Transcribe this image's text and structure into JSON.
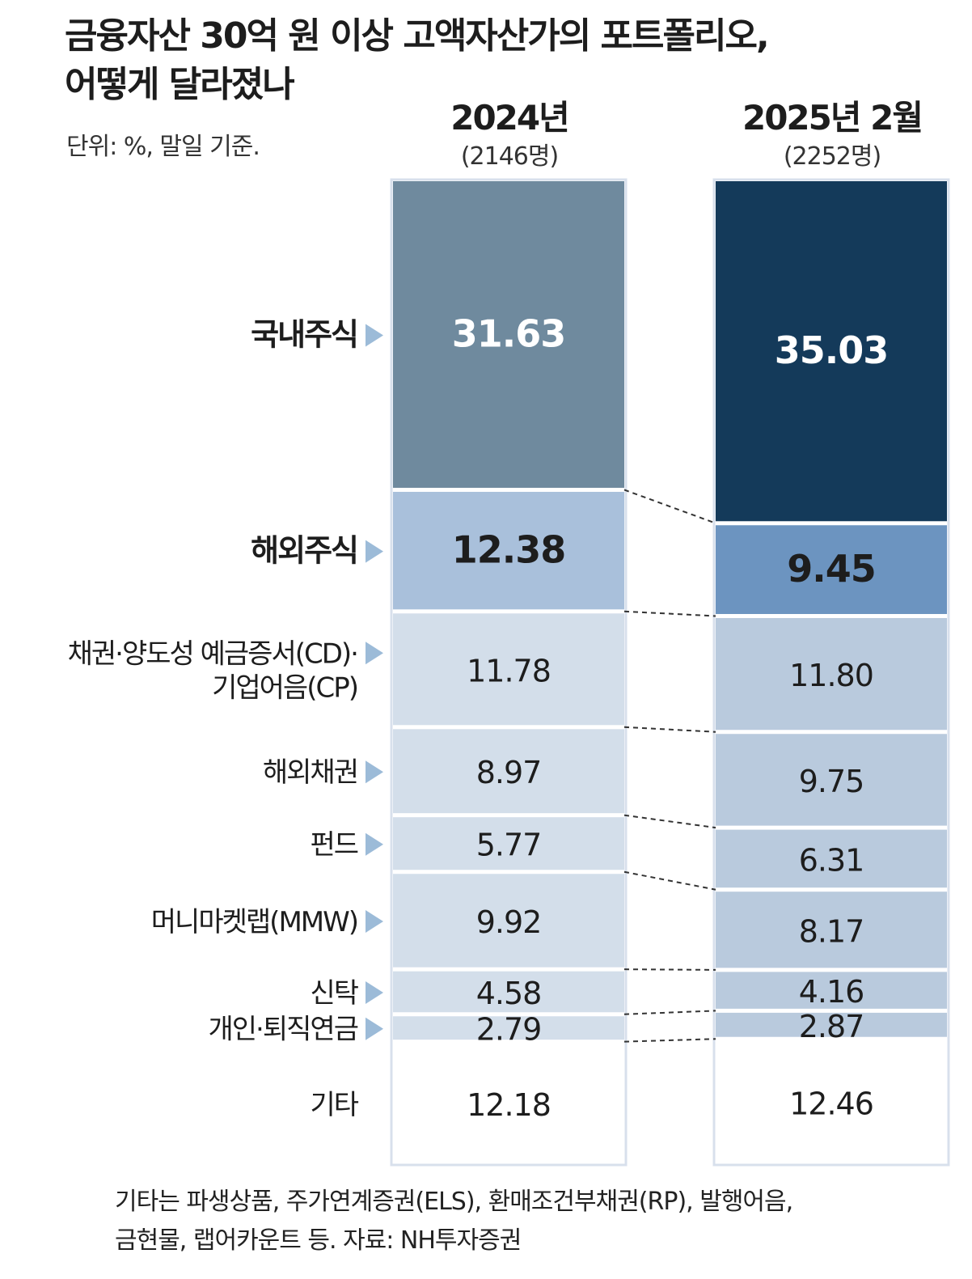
{
  "title": {
    "line1": "금융자산 30억 원 이상 고액자산가의 포트폴리오,",
    "line2": "어떻게 달라졌나"
  },
  "unit_note": "단위: %, 말일 기준.",
  "footnote": {
    "line1": "기타는 파생상품, 주가연계증권(ELS), 환매조건부채권(RP), 발행어음,",
    "line2": "금현물, 랩어카운트 등.  자료: NH투자증권"
  },
  "colors": {
    "frame": "#d8e0ec",
    "domestic_2024": "#6f8a9e",
    "domestic_2025": "#143a5a",
    "overseas_2024": "#a9c0db",
    "overseas_2025": "#6c94c0",
    "other_2024": "#d3deea",
    "other_2025": "#b9cadd",
    "etc": "#ffffff",
    "arrow": "#9cbbd8"
  },
  "chart_data": {
    "type": "stacked-bar",
    "unit": "%",
    "categories": [
      "국내주식",
      "해외주식",
      "채권·양도성 예금증서(CD)·기업어음(CP)",
      "해외채권",
      "펀드",
      "머니마켓랩(MMW)",
      "신탁",
      "개인·퇴직연금",
      "기타"
    ],
    "category_label_lines": [
      [
        "국내주식"
      ],
      [
        "해외주식"
      ],
      [
        "채권·양도성 예금증서(CD)·",
        "기업어음(CP)"
      ],
      [
        "해외채권"
      ],
      [
        "펀드"
      ],
      [
        "머니마켓랩(MMW)"
      ],
      [
        "신탁"
      ],
      [
        "개인·퇴직연금"
      ],
      [
        "기타"
      ]
    ],
    "series": [
      {
        "name": "2024년",
        "subtitle": "(2146명)",
        "values": [
          31.63,
          12.38,
          11.78,
          8.97,
          5.77,
          9.92,
          4.58,
          2.79,
          12.18
        ],
        "labels": [
          "31.63",
          "12.38",
          "11.78",
          "8.97",
          "5.77",
          "9.92",
          "4.58",
          "2.79",
          "12.18"
        ]
      },
      {
        "name": "2025년 2월",
        "subtitle": "(2252명)",
        "values": [
          35.03,
          9.45,
          11.8,
          9.75,
          6.31,
          8.17,
          4.16,
          2.87,
          12.46
        ],
        "labels": [
          "35.03",
          "9.45",
          "11.80",
          "9.75",
          "6.31",
          "8.17",
          "4.16",
          "2.87",
          "12.46"
        ]
      }
    ]
  }
}
